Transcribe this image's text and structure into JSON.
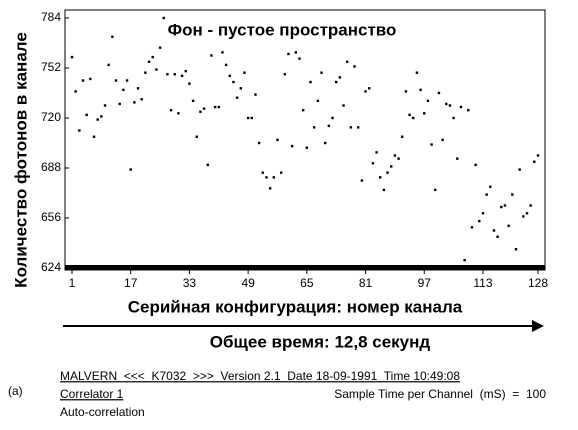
{
  "chart_data": {
    "type": "scatter",
    "title": "Фон - пустое пространство",
    "ylabel": "Количество фотонов в канале",
    "xlabel": "Серийная конфигурация: номер канала",
    "arrow_label": "Общее время: 12,8 секунд",
    "x": [
      1,
      2,
      3,
      4,
      5,
      6,
      7,
      8,
      9,
      10,
      11,
      12,
      13,
      14,
      15,
      16,
      17,
      18,
      19,
      20,
      21,
      22,
      23,
      24,
      25,
      26,
      27,
      28,
      29,
      30,
      31,
      32,
      33,
      34,
      35,
      36,
      37,
      38,
      39,
      40,
      41,
      42,
      43,
      44,
      45,
      46,
      47,
      48,
      49,
      50,
      51,
      52,
      53,
      54,
      55,
      56,
      57,
      58,
      59,
      60,
      61,
      62,
      63,
      64,
      65,
      66,
      67,
      68,
      69,
      70,
      71,
      72,
      73,
      74,
      75,
      76,
      77,
      78,
      79,
      80,
      81,
      82,
      83,
      84,
      85,
      86,
      87,
      88,
      89,
      90,
      91,
      92,
      93,
      94,
      95,
      96,
      97,
      98,
      99,
      100,
      101,
      102,
      103,
      104,
      105,
      106,
      107,
      108,
      109,
      110,
      111,
      112,
      113,
      114,
      115,
      116,
      117,
      118,
      119,
      120,
      121,
      122,
      123,
      124,
      125,
      126,
      127,
      128
    ],
    "series": [
      {
        "color": "#000000",
        "values": [
          759,
          737,
          712,
          744,
          722,
          745,
          708,
          719,
          721,
          728,
          754,
          772,
          744,
          729,
          738,
          744,
          687,
          730,
          739,
          732,
          749,
          756,
          759,
          751,
          765,
          784,
          748,
          725,
          748,
          723,
          747,
          750,
          742,
          731,
          708,
          724,
          726,
          690,
          760,
          727,
          727,
          762,
          754,
          747,
          743,
          733,
          739,
          749,
          720,
          720,
          735,
          704,
          685,
          682,
          675,
          682,
          706,
          685,
          748,
          761,
          702,
          762,
          758,
          725,
          701,
          743,
          714,
          731,
          749,
          704,
          715,
          720,
          743,
          746,
          728,
          756,
          714,
          753,
          714,
          680,
          737,
          739,
          691,
          698,
          682,
          674,
          685,
          689,
          696,
          694,
          708,
          737,
          722,
          720,
          749,
          738,
          723,
          731,
          703,
          674,
          736,
          706,
          729,
          728,
          720,
          694,
          727,
          629,
          725,
          650,
          690,
          654,
          659,
          671,
          676,
          648,
          644,
          663,
          664,
          651,
          671,
          636,
          687,
          657,
          659,
          664,
          692,
          696
        ]
      }
    ],
    "xlim": [
      1,
      128
    ],
    "xticks": [
      1,
      17,
      33,
      49,
      65,
      81,
      97,
      113,
      128
    ],
    "ylim": [
      624,
      784
    ],
    "yticks": [
      624,
      656,
      688,
      720,
      752,
      784
    ]
  },
  "footer": {
    "panel": "(a)",
    "line1": "MALVERN  <<<  K7032  >>>  Version 2.1  Date 18-09-1991  Time 10:49:08",
    "line2_left": "Correlator 1",
    "line2_right": "Sample Time per Channel  (mS)  =  100",
    "line3": "Auto-correlation"
  }
}
